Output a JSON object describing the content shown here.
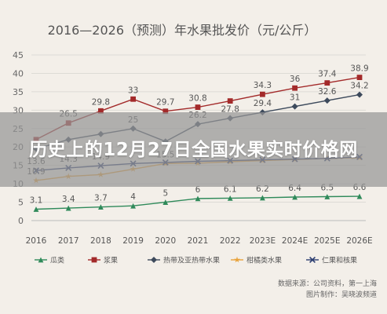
{
  "chart_data": {
    "type": "line",
    "title": "2016—2026（预测）年水果批发价（元/公斤）",
    "categories": [
      "2016",
      "2017",
      "2018",
      "2019",
      "2020",
      "2021",
      "2022",
      "2023E",
      "2024E",
      "2025E",
      "2026E"
    ],
    "yticks": [
      0,
      5,
      10,
      15,
      20,
      25,
      30,
      35,
      40,
      45
    ],
    "ylim": [
      0,
      45
    ],
    "grid": true,
    "legend_position": "bottom",
    "series": [
      {
        "name": "瓜类",
        "color": "#2f8a5a",
        "marker": "triangle",
        "values": [
          3.1,
          3.4,
          3.7,
          4,
          5,
          6,
          6.1,
          6.2,
          6.4,
          6.5,
          6.6
        ],
        "labels": [
          "3.1",
          "3.4",
          "3.7",
          "4",
          "5",
          "6",
          "6.1",
          "6.2",
          "6.4",
          "6.5",
          "6.6"
        ]
      },
      {
        "name": "浆果",
        "color": "#a32a2a",
        "marker": "square",
        "values": [
          22,
          26.5,
          29.8,
          33,
          29.7,
          30.8,
          32.5,
          34.3,
          36,
          37.4,
          38.9
        ],
        "labels": [
          "",
          "26.5",
          "29.8",
          "33",
          "29.7",
          "30.8",
          "",
          "34.3",
          "36",
          "37.4",
          "38.9"
        ]
      },
      {
        "name": "热带及亚热带水果",
        "color": "#3d4a5c",
        "marker": "diamond",
        "values": [
          19.5,
          22,
          23.5,
          25,
          21.5,
          26.2,
          27.8,
          29.4,
          31,
          32.6,
          34.2
        ],
        "labels": [
          "",
          "",
          "",
          "25",
          "",
          "26.2",
          "27.8",
          "29.4",
          "31",
          "32.6",
          "34.2"
        ]
      },
      {
        "name": "柑橘类水果",
        "color": "#e8a23a",
        "marker": "star",
        "values": [
          10.9,
          12,
          12.5,
          14,
          15.5,
          15.6,
          16,
          16.3,
          16.6,
          16.9,
          17.1
        ],
        "labels": [
          "10.9",
          "",
          "",
          "",
          "15.5",
          "",
          "",
          "",
          "",
          "",
          ""
        ]
      },
      {
        "name": "仁果和核果",
        "color": "#2b3c70",
        "marker": "x",
        "values": [
          13.6,
          14.3,
          14.9,
          15.5,
          15.8,
          16.1,
          16.3,
          16.5,
          16.7,
          16.9,
          17.3
        ],
        "labels": [
          "13.6",
          "14.3",
          "14.9",
          "",
          "",
          "",
          "",
          "",
          "",
          "",
          ""
        ]
      }
    ]
  },
  "overlay": {
    "headline": "历史上的12月27日全国水果实时价格网"
  },
  "footer": {
    "source": "数据来源：公司资料，第一上海",
    "drawing": "图片制作：吴晓波频道"
  }
}
